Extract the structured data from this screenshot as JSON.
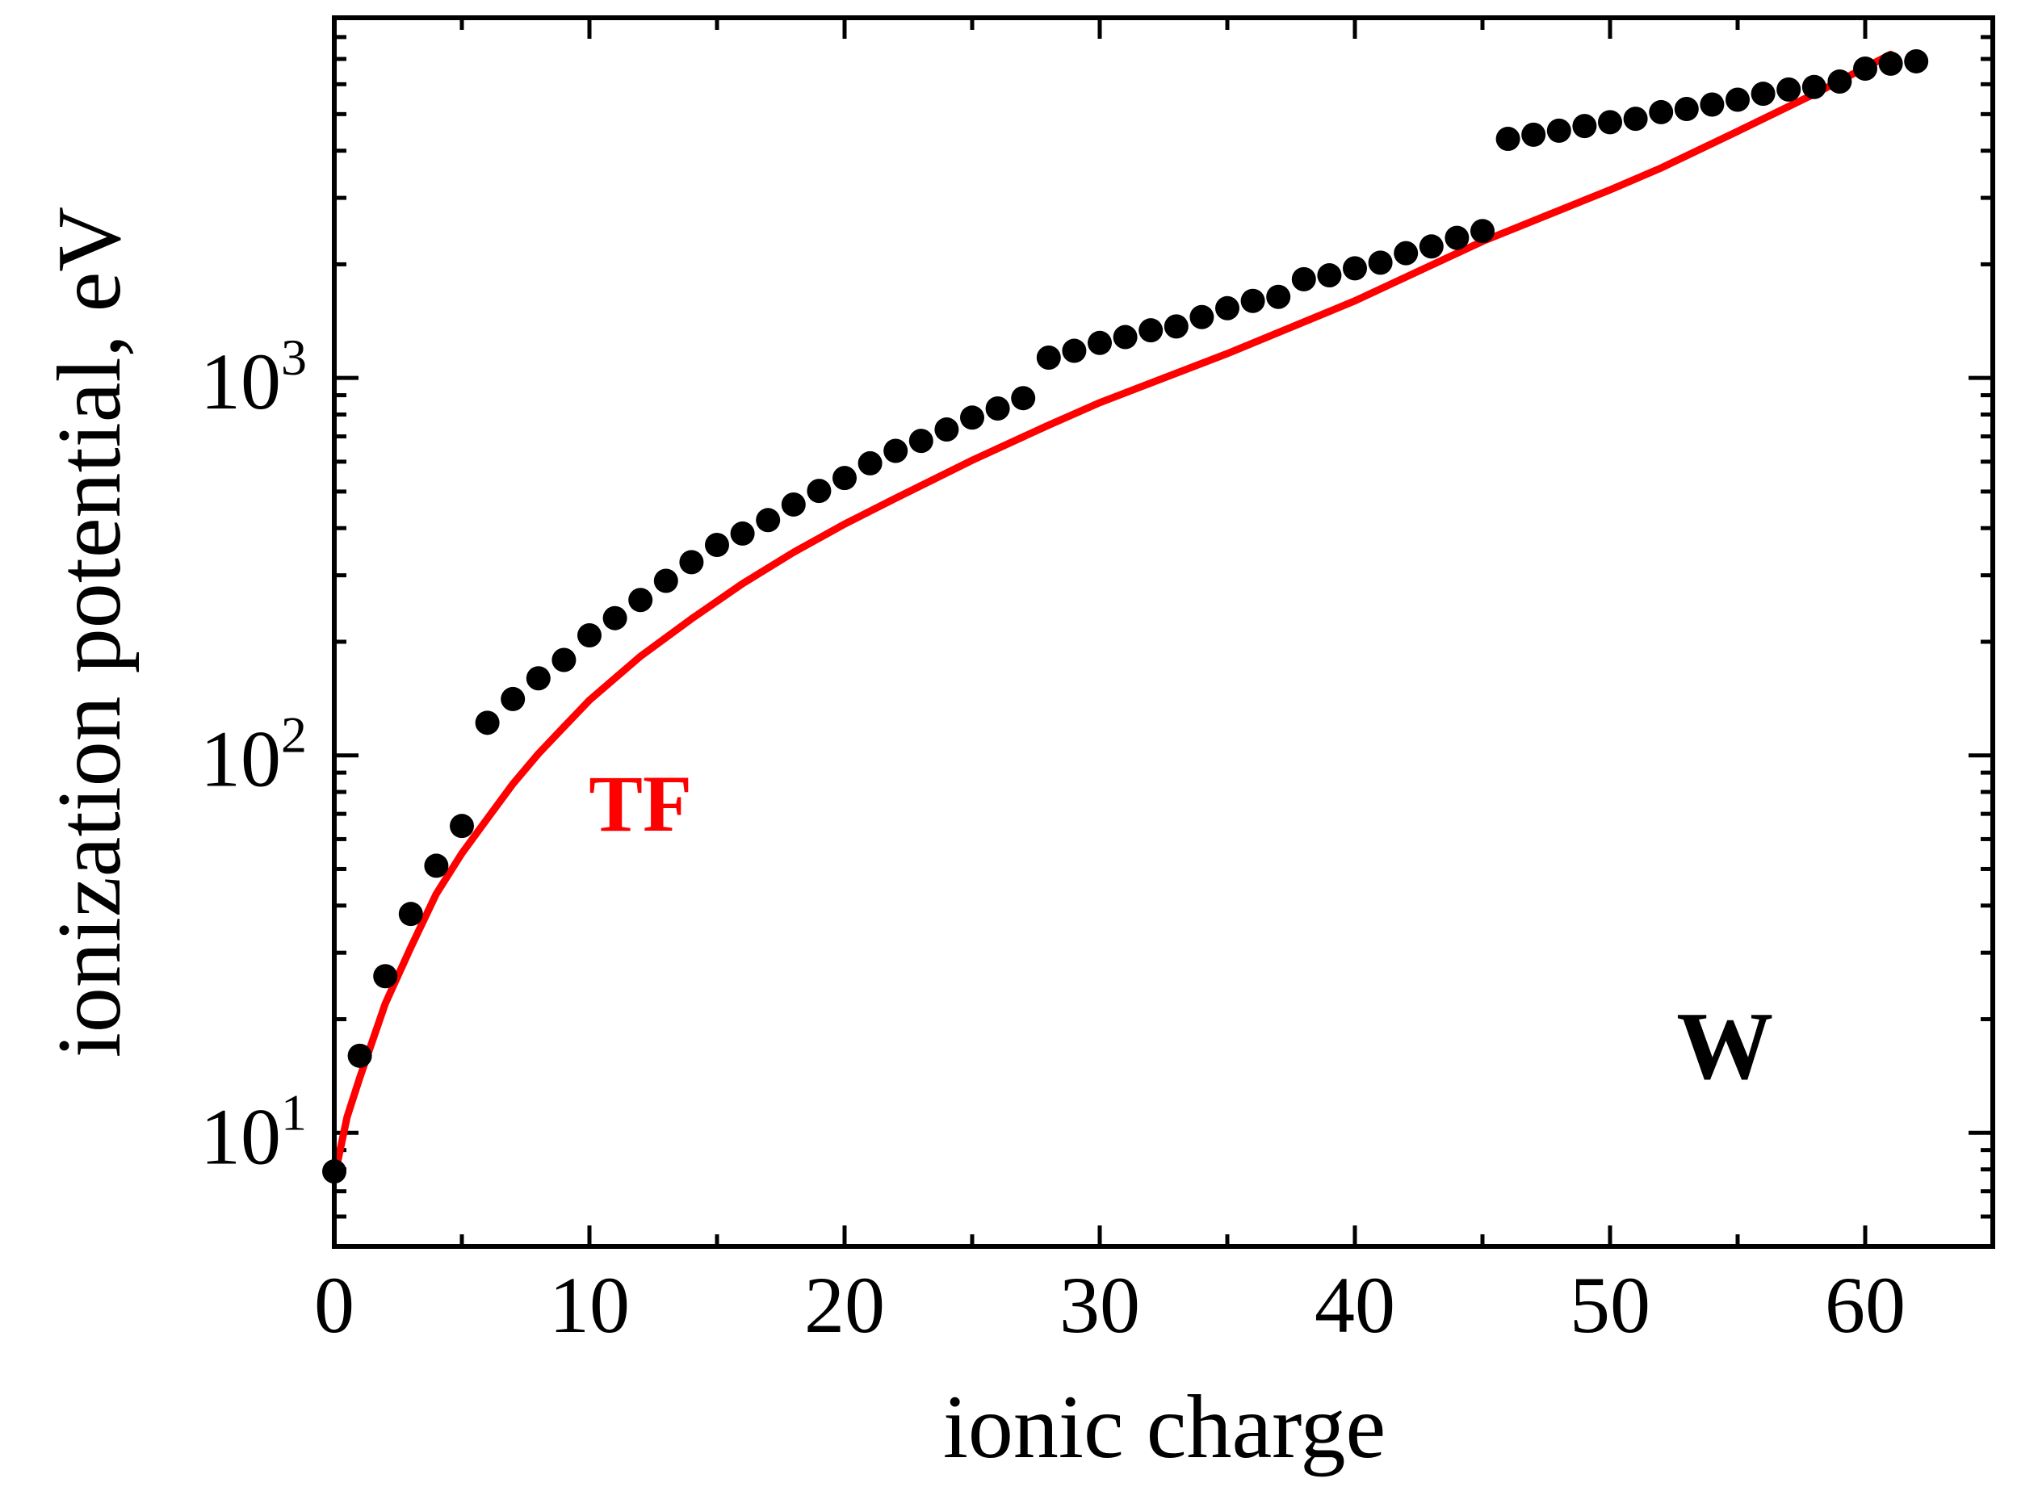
{
  "chart_data": {
    "type": "scatter",
    "title": "",
    "xlabel": "ionic charge",
    "ylabel": "ionization potential, eV",
    "xlim": [
      0,
      65
    ],
    "ylim": [
      5,
      9000
    ],
    "yscale": "log",
    "grid": false,
    "x_ticks": [
      {
        "value": 0,
        "label": "0"
      },
      {
        "value": 10,
        "label": "10"
      },
      {
        "value": 20,
        "label": "20"
      },
      {
        "value": 30,
        "label": "30"
      },
      {
        "value": 40,
        "label": "40"
      },
      {
        "value": 50,
        "label": "50"
      },
      {
        "value": 60,
        "label": "60"
      }
    ],
    "y_ticks": [
      {
        "value": 10,
        "base": "10",
        "exp": "1"
      },
      {
        "value": 100,
        "base": "10",
        "exp": "2"
      },
      {
        "value": 1000,
        "base": "10",
        "exp": "3"
      }
    ],
    "series": [
      {
        "name": "ionization potential (W)",
        "kind": "scatter",
        "color": "#000000",
        "x": [
          0,
          1,
          2,
          3,
          4,
          5,
          6,
          7,
          8,
          9,
          10,
          11,
          12,
          13,
          14,
          15,
          16,
          17,
          18,
          19,
          20,
          21,
          22,
          23,
          24,
          25,
          26,
          27,
          28,
          29,
          30,
          31,
          32,
          33,
          34,
          35,
          36,
          37,
          38,
          39,
          40,
          41,
          42,
          43,
          44,
          45,
          46,
          47,
          48,
          49,
          50,
          51,
          52,
          53,
          54,
          55,
          56,
          57,
          58,
          59,
          60,
          61,
          62
        ],
        "y": [
          7.9,
          16,
          26,
          38,
          51,
          65,
          122,
          141,
          160,
          179,
          208,
          231,
          258,
          290,
          325,
          361,
          387,
          420,
          462,
          502,
          543,
          594,
          641,
          681,
          730,
          785,
          830,
          884,
          1132,
          1180,
          1238,
          1283,
          1337,
          1369,
          1450,
          1530,
          1600,
          1640,
          1826,
          1870,
          1952,
          2020,
          2140,
          2230,
          2350,
          2450,
          4300,
          4410,
          4520,
          4650,
          4760,
          4860,
          5060,
          5160,
          5300,
          5460,
          5660,
          5810,
          5900,
          6100,
          6600,
          6800,
          6900
        ]
      },
      {
        "name": "TF",
        "kind": "line",
        "color": "#ff0000",
        "x": [
          0,
          0.5,
          1,
          2,
          3,
          4,
          5,
          6,
          7,
          8,
          9,
          10,
          12,
          14,
          16,
          18,
          20,
          22,
          25,
          28,
          30,
          35,
          40,
          45,
          50,
          52,
          55,
          58,
          61
        ],
        "y": [
          7.6,
          11,
          14,
          22,
          31,
          43,
          55,
          68,
          84,
          101,
          119,
          140,
          183,
          230,
          285,
          345,
          410,
          480,
          605,
          750,
          860,
          1160,
          1600,
          2300,
          3150,
          3600,
          4500,
          5650,
          7200
        ]
      }
    ],
    "annotations": [
      {
        "text": "TF",
        "x": 12,
        "y": 75,
        "color": "#ff0000"
      },
      {
        "text": "W",
        "x": 54.5,
        "y": 17,
        "color": "#000000"
      }
    ]
  }
}
